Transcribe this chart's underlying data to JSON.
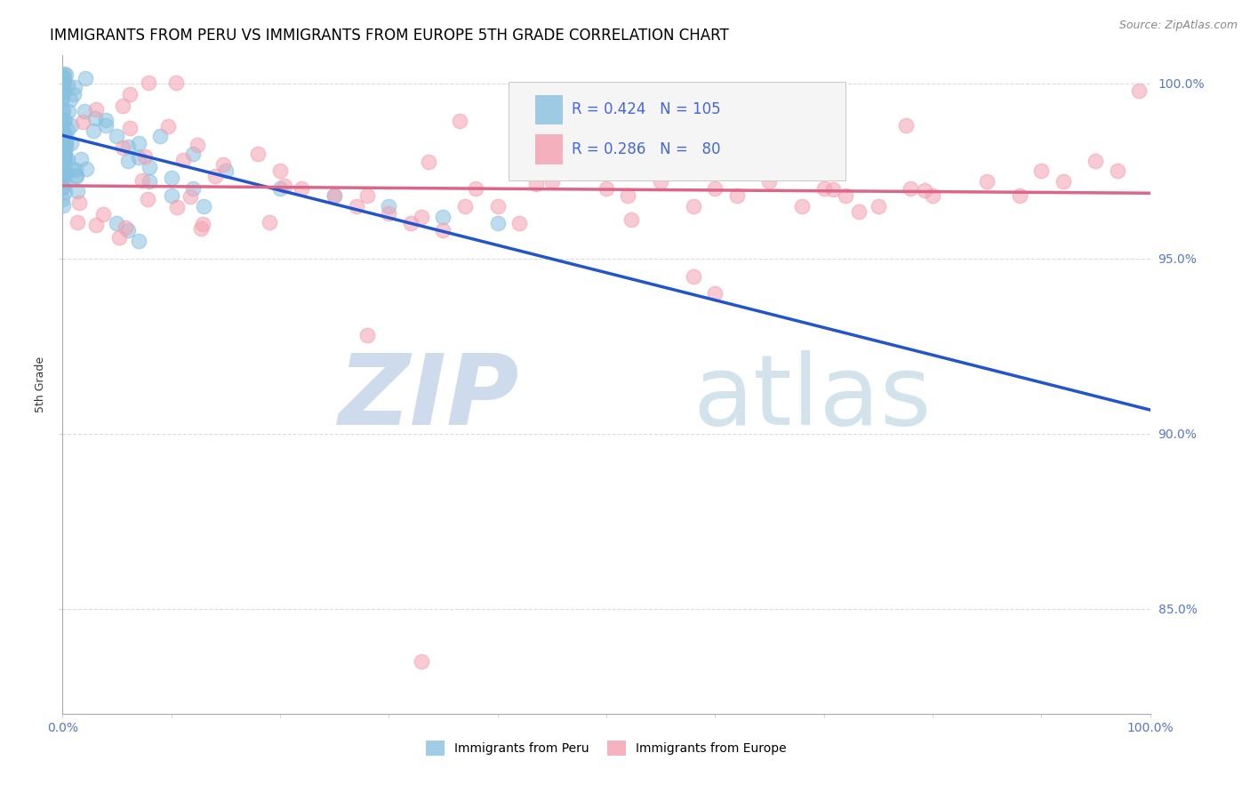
{
  "title": "IMMIGRANTS FROM PERU VS IMMIGRANTS FROM EUROPE 5TH GRADE CORRELATION CHART",
  "source": "Source: ZipAtlas.com",
  "ylabel": "5th Grade",
  "r_peru": 0.424,
  "n_peru": 105,
  "r_europe": 0.286,
  "n_europe": 80,
  "xlim": [
    0.0,
    1.0
  ],
  "ylim": [
    0.82,
    1.008
  ],
  "yticks": [
    0.85,
    0.9,
    0.95,
    1.0
  ],
  "color_peru": "#88c0e0",
  "color_europe": "#f4a0b0",
  "color_peru_line": "#2255cc",
  "color_europe_line": "#dd6688",
  "watermark_zip_color": "#c8d8ea",
  "watermark_atlas_color": "#a8c8da",
  "title_fontsize": 12,
  "axis_label_fontsize": 9,
  "tick_fontsize": 10,
  "legend_fontsize": 12
}
